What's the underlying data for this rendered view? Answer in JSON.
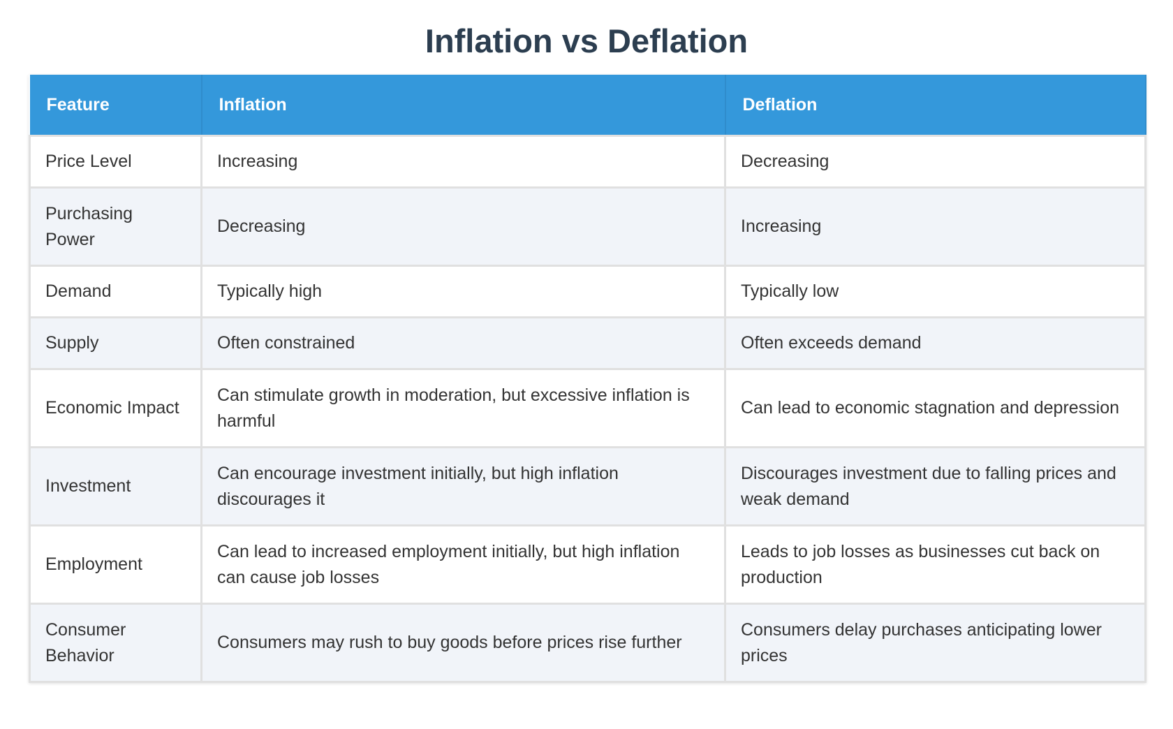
{
  "header": {
    "title": "Inflation vs Deflation"
  },
  "table": {
    "columns": [
      "Feature",
      "Inflation",
      "Deflation"
    ],
    "rows": [
      [
        "Price Level",
        "Increasing",
        "Decreasing"
      ],
      [
        "Purchasing Power",
        "Decreasing",
        "Increasing"
      ],
      [
        "Demand",
        "Typically high",
        "Typically low"
      ],
      [
        "Supply",
        "Often constrained",
        "Often exceeds demand"
      ],
      [
        "Economic Impact",
        "Can stimulate growth in moderation, but excessive inflation is harmful",
        "Can lead to economic stagnation and depression"
      ],
      [
        "Investment",
        "Can encourage investment initially, but high inflation discourages it",
        "Discourages investment due to falling prices and weak demand"
      ],
      [
        "Employment",
        "Can lead to increased employment initially, but high inflation can cause job losses",
        "Leads to job losses as businesses cut back on production"
      ],
      [
        "Consumer Behavior",
        "Consumers may rush to buy goods before prices rise further",
        "Consumers delay purchases anticipating lower prices"
      ]
    ]
  }
}
